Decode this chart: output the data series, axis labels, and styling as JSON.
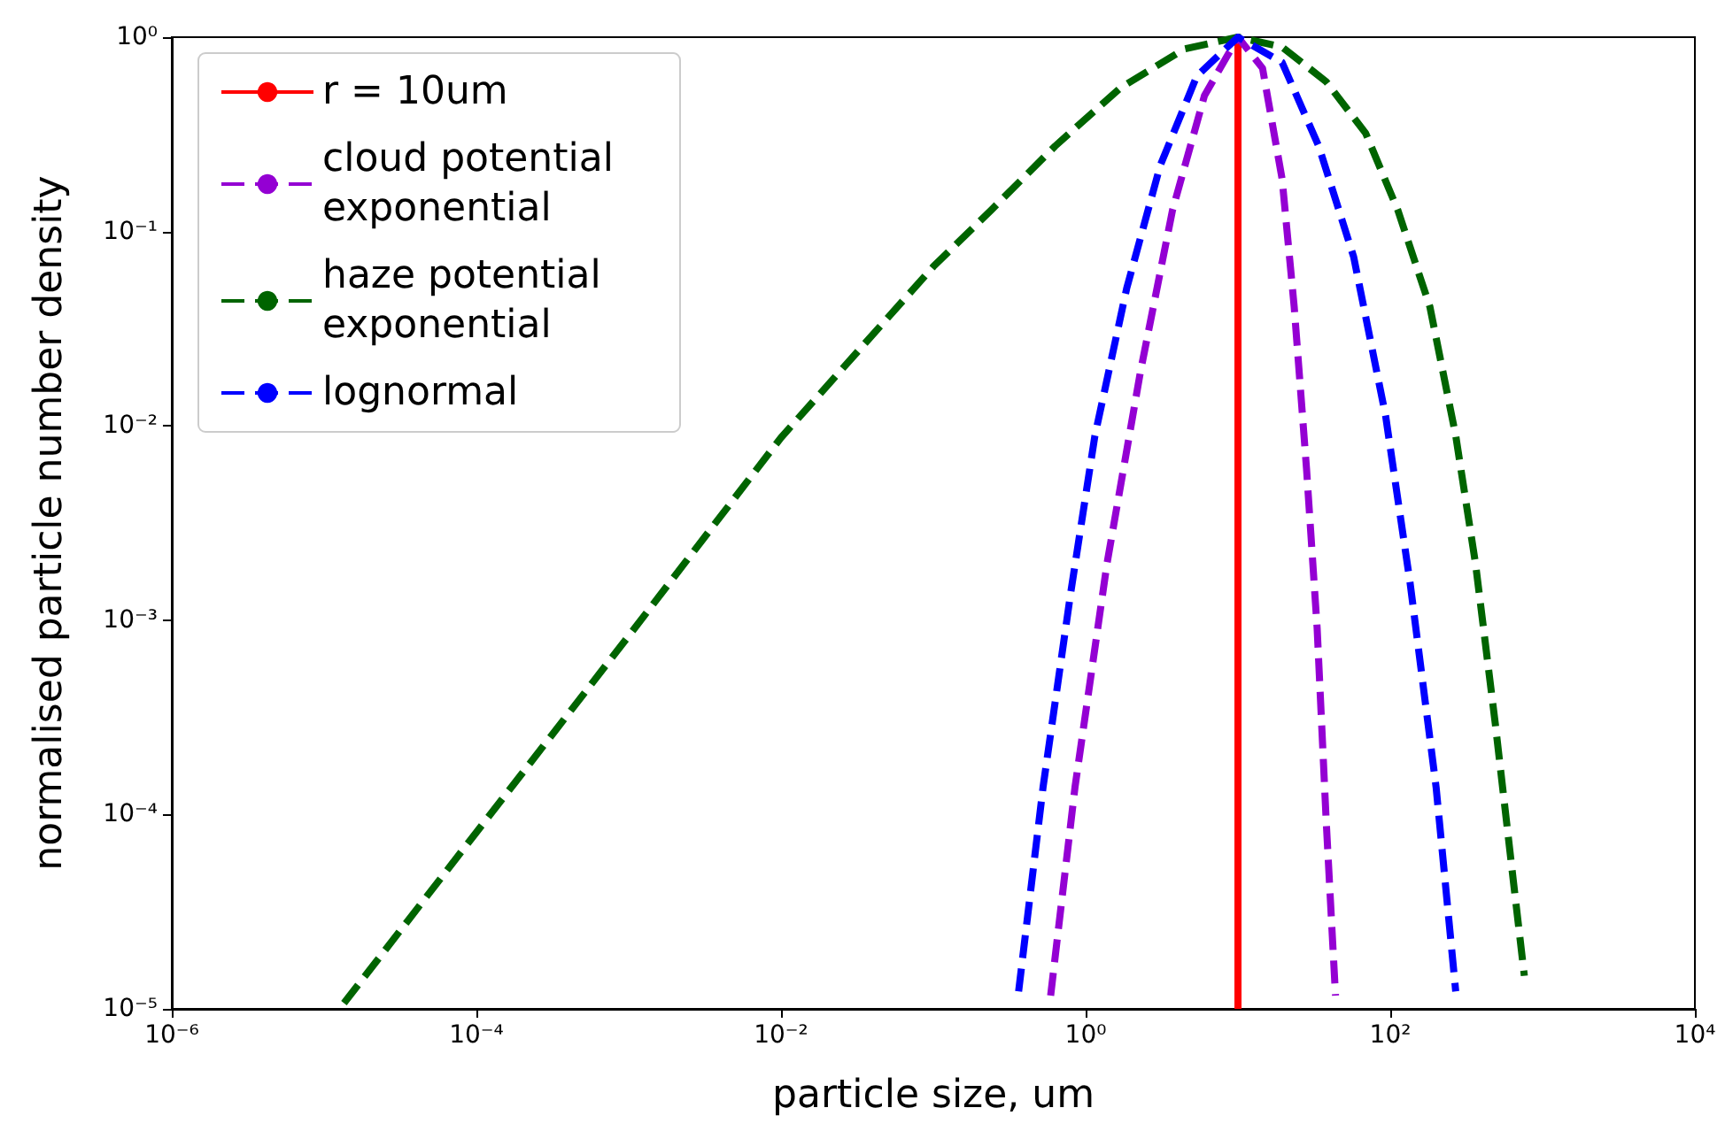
{
  "chart_data": {
    "type": "line",
    "xlabel": "particle size, um",
    "ylabel": "normalised particle number density",
    "log": "xy",
    "grid": false,
    "legend": "top left",
    "marker": "none",
    "xlim": [
      1e-06,
      10000.0
    ],
    "ylim": [
      1e-05,
      1
    ],
    "xticks": [
      {
        "value": 1e-06,
        "label": "10⁻⁶"
      },
      {
        "value": 0.0001,
        "label": "10⁻⁴"
      },
      {
        "value": 0.01,
        "label": "10⁻²"
      },
      {
        "value": 1,
        "label": "10⁰"
      },
      {
        "value": 100,
        "label": "10²"
      },
      {
        "value": 10000,
        "label": "10⁴"
      }
    ],
    "yticks": [
      {
        "value": 1e-05,
        "label": "10⁻⁵"
      },
      {
        "value": 0.0001,
        "label": "10⁻⁴"
      },
      {
        "value": 0.001,
        "label": "10⁻³"
      },
      {
        "value": 0.01,
        "label": "10⁻²"
      },
      {
        "value": 0.1,
        "label": "10⁻¹"
      },
      {
        "value": 1,
        "label": "10⁰"
      }
    ],
    "series": [
      {
        "name": "r = 10um",
        "color": "#ff0000",
        "line_style": "solid",
        "x": [
          10,
          10
        ],
        "values": [
          1e-05,
          1
        ]
      },
      {
        "name": "cloud potential exponential",
        "color": "#9400d3",
        "line_style": "dashed",
        "x": [
          0.589,
          0.851,
          1.38,
          2.29,
          3.72,
          6.03,
          10,
          14.5,
          19.5,
          23.4,
          28.2,
          33.1,
          38,
          43.7
        ],
        "values": [
          1.17e-05,
          0.000138,
          0.00195,
          0.019,
          0.129,
          0.501,
          1,
          0.692,
          0.186,
          0.041,
          0.006,
          0.00091,
          9.1e-05,
          1.17e-05
        ]
      },
      {
        "name": "haze potential exponential",
        "color": "#006400",
        "line_style": "dashed",
        "x": [
          1.35e-05,
          0.0001,
          0.001,
          0.01,
          0.1,
          0.24,
          0.63,
          1.7,
          4.47,
          10,
          19.5,
          38,
          69,
          112,
          182,
          269,
          363,
          490,
          646,
          759
        ],
        "values": [
          1.07e-05,
          8.1e-05,
          0.00083,
          0.0087,
          0.066,
          0.129,
          0.275,
          0.55,
          0.87,
          1,
          0.89,
          0.59,
          0.32,
          0.129,
          0.041,
          0.0089,
          0.00195,
          0.00029,
          4.4e-05,
          1.48e-05
        ]
      },
      {
        "name": "lognormal",
        "color": "#0000ff",
        "line_style": "dashed",
        "x": [
          0.363,
          0.525,
          0.794,
          1.15,
          1.86,
          3.09,
          5.37,
          10,
          19.5,
          33.9,
          57.5,
          93.3,
          135,
          200,
          269
        ],
        "values": [
          1.23e-05,
          0.000138,
          0.00135,
          0.0089,
          0.051,
          0.219,
          0.631,
          1,
          0.741,
          0.275,
          0.074,
          0.0112,
          0.00155,
          0.000138,
          1.23e-05
        ]
      }
    ]
  }
}
